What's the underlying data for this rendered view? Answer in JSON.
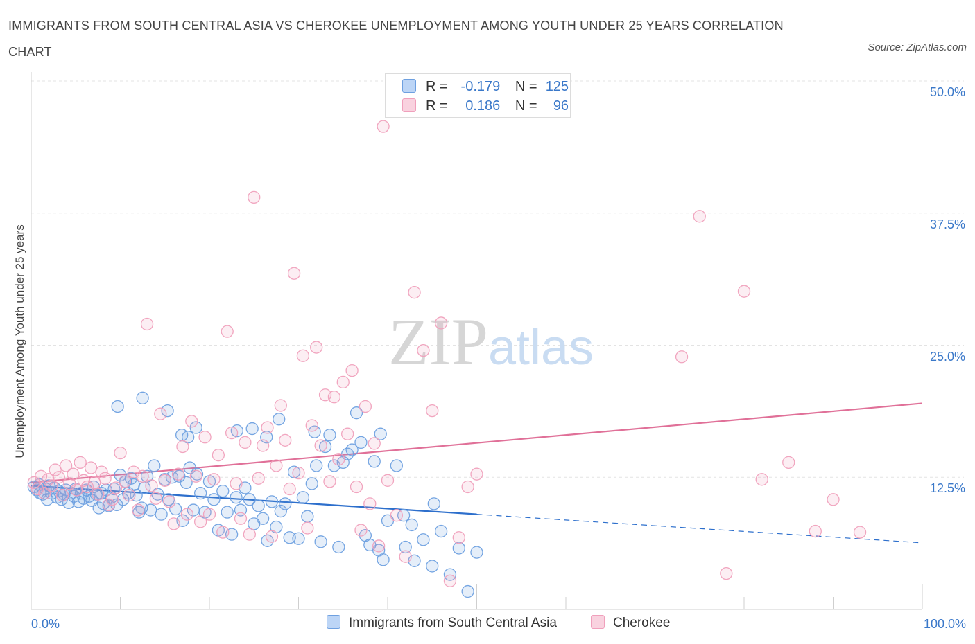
{
  "chart_data": {
    "type": "scatter",
    "title": "IMMIGRANTS FROM SOUTH CENTRAL ASIA VS CHEROKEE UNEMPLOYMENT AMONG YOUTH UNDER 25 YEARS CORRELATION CHART",
    "source": "Source: ZipAtlas.com",
    "xlabel": "",
    "ylabel": "Unemployment Among Youth under 25 years",
    "xlim": [
      0,
      100
    ],
    "ylim": [
      0,
      50
    ],
    "x_tick_labels": [
      "0.0%",
      "100.0%"
    ],
    "y_ticks": [
      {
        "value": 50,
        "label": "50.0%"
      },
      {
        "value": 37.5,
        "label": "37.5%"
      },
      {
        "value": 25,
        "label": "25.0%"
      },
      {
        "value": 12.5,
        "label": "12.5%"
      }
    ],
    "legend": {
      "rows": [
        {
          "r_label": "R =",
          "r_value": "-0.179",
          "n_label": "N =",
          "n_value": "125"
        },
        {
          "r_label": "R =",
          "r_value": "0.186",
          "n_label": "N =",
          "n_value": "96"
        }
      ]
    },
    "watermark": "ZIPatlas",
    "series": [
      {
        "name": "Immigrants from South Central Asia",
        "color": "#6ea0e0",
        "line_color": "#2d6fcc",
        "trend": {
          "x0": 0,
          "y0": 11.7,
          "x1": 50,
          "y1": 9.0,
          "dash_x1": 100,
          "dash_y1": 6.3
        },
        "points": [
          [
            0.3,
            11.6
          ],
          [
            0.6,
            11.3
          ],
          [
            0.9,
            11.8
          ],
          [
            1.0,
            11.0
          ],
          [
            1.3,
            10.9
          ],
          [
            1.6,
            11.4
          ],
          [
            1.8,
            10.4
          ],
          [
            2.0,
            11.7
          ],
          [
            2.3,
            11.0
          ],
          [
            2.6,
            11.5
          ],
          [
            2.9,
            10.6
          ],
          [
            3.1,
            11.2
          ],
          [
            3.4,
            10.4
          ],
          [
            3.7,
            10.9
          ],
          [
            3.9,
            11.3
          ],
          [
            4.2,
            10.1
          ],
          [
            4.5,
            11.0
          ],
          [
            4.8,
            10.7
          ],
          [
            5.0,
            11.4
          ],
          [
            5.3,
            10.2
          ],
          [
            5.6,
            11.0
          ],
          [
            5.9,
            10.5
          ],
          [
            6.2,
            11.3
          ],
          [
            6.5,
            10.7
          ],
          [
            6.8,
            10.3
          ],
          [
            7.0,
            11.6
          ],
          [
            7.3,
            10.9
          ],
          [
            7.6,
            9.6
          ],
          [
            7.9,
            11.0
          ],
          [
            8.1,
            10.0
          ],
          [
            8.4,
            11.3
          ],
          [
            8.7,
            9.8
          ],
          [
            9.0,
            10.6
          ],
          [
            9.3,
            11.4
          ],
          [
            9.6,
            9.9
          ],
          [
            10.0,
            12.7
          ],
          [
            10.3,
            10.4
          ],
          [
            10.6,
            12.1
          ],
          [
            10.9,
            11.0
          ],
          [
            11.2,
            12.4
          ],
          [
            11.5,
            11.8
          ],
          [
            11.8,
            10.8
          ],
          [
            12.1,
            9.2
          ],
          [
            12.4,
            9.6
          ],
          [
            12.7,
            11.5
          ],
          [
            13.0,
            12.6
          ],
          [
            13.4,
            9.4
          ],
          [
            13.8,
            13.6
          ],
          [
            14.2,
            10.9
          ],
          [
            14.6,
            9.0
          ],
          [
            15.0,
            12.3
          ],
          [
            15.4,
            10.4
          ],
          [
            15.8,
            12.5
          ],
          [
            16.2,
            9.5
          ],
          [
            16.6,
            12.6
          ],
          [
            17.0,
            8.4
          ],
          [
            17.4,
            12.0
          ],
          [
            17.8,
            13.4
          ],
          [
            18.2,
            9.4
          ],
          [
            18.6,
            12.8
          ],
          [
            19.0,
            11.0
          ],
          [
            19.5,
            9.2
          ],
          [
            20.0,
            12.1
          ],
          [
            20.5,
            10.4
          ],
          [
            21.0,
            7.5
          ],
          [
            21.5,
            11.2
          ],
          [
            22.0,
            9.2
          ],
          [
            22.5,
            7.1
          ],
          [
            23.0,
            10.6
          ],
          [
            23.5,
            9.4
          ],
          [
            24.0,
            11.5
          ],
          [
            24.5,
            10.4
          ],
          [
            25.0,
            8.1
          ],
          [
            25.5,
            9.8
          ],
          [
            26.0,
            8.6
          ],
          [
            26.5,
            6.5
          ],
          [
            27.0,
            10.2
          ],
          [
            27.5,
            7.8
          ],
          [
            28.0,
            9.3
          ],
          [
            28.5,
            10.0
          ],
          [
            29.0,
            6.8
          ],
          [
            29.5,
            13.0
          ],
          [
            30.0,
            6.7
          ],
          [
            30.5,
            10.6
          ],
          [
            31.0,
            8.8
          ],
          [
            31.5,
            11.9
          ],
          [
            32.0,
            13.6
          ],
          [
            32.5,
            6.4
          ],
          [
            33.0,
            15.4
          ],
          [
            33.5,
            16.5
          ],
          [
            34.0,
            13.6
          ],
          [
            34.5,
            5.9
          ],
          [
            35.0,
            13.9
          ],
          [
            35.5,
            14.7
          ],
          [
            36.0,
            15.1
          ],
          [
            36.5,
            18.6
          ],
          [
            37.0,
            15.8
          ],
          [
            37.5,
            7.0
          ],
          [
            38.0,
            6.1
          ],
          [
            38.5,
            14.0
          ],
          [
            39.0,
            5.6
          ],
          [
            39.5,
            4.7
          ],
          [
            40.0,
            8.4
          ],
          [
            41.0,
            13.6
          ],
          [
            42.0,
            5.9
          ],
          [
            43.0,
            4.6
          ],
          [
            44.0,
            6.6
          ],
          [
            45.0,
            4.1
          ],
          [
            46.0,
            7.4
          ],
          [
            47.0,
            3.3
          ],
          [
            48.0,
            5.8
          ],
          [
            49.0,
            1.7
          ],
          [
            50.0,
            5.4
          ],
          [
            9.7,
            19.2
          ],
          [
            12.5,
            20.0
          ],
          [
            15.3,
            18.8
          ],
          [
            16.9,
            16.5
          ],
          [
            17.6,
            16.3
          ],
          [
            18.5,
            17.2
          ],
          [
            23.1,
            16.9
          ],
          [
            24.8,
            17.1
          ],
          [
            26.4,
            16.3
          ],
          [
            27.8,
            18.0
          ],
          [
            31.8,
            16.8
          ],
          [
            39.2,
            16.6
          ],
          [
            45.2,
            10.0
          ],
          [
            42.7,
            8.0
          ],
          [
            41.8,
            8.9
          ]
        ]
      },
      {
        "name": "Cherokee",
        "color": "#f0a0bc",
        "line_color": "#e07098",
        "trend": {
          "x0": 0,
          "y0": 12.0,
          "x1": 100,
          "y1": 19.5
        },
        "points": [
          [
            0.3,
            12.0
          ],
          [
            0.7,
            11.4
          ],
          [
            1.1,
            12.6
          ],
          [
            1.5,
            11.0
          ],
          [
            1.9,
            12.3
          ],
          [
            2.3,
            11.7
          ],
          [
            2.7,
            13.2
          ],
          [
            3.1,
            12.5
          ],
          [
            3.5,
            10.8
          ],
          [
            3.9,
            13.6
          ],
          [
            4.3,
            11.9
          ],
          [
            4.7,
            12.8
          ],
          [
            5.1,
            11.3
          ],
          [
            5.5,
            13.9
          ],
          [
            5.9,
            12.2
          ],
          [
            6.3,
            11.6
          ],
          [
            6.7,
            13.4
          ],
          [
            7.1,
            12.0
          ],
          [
            7.5,
            10.9
          ],
          [
            7.9,
            13.0
          ],
          [
            8.3,
            12.4
          ],
          [
            8.7,
            9.9
          ],
          [
            9.1,
            10.4
          ],
          [
            9.5,
            11.5
          ],
          [
            10.0,
            14.8
          ],
          [
            10.5,
            12.1
          ],
          [
            11.0,
            10.8
          ],
          [
            11.5,
            13.0
          ],
          [
            12.0,
            9.4
          ],
          [
            12.5,
            12.6
          ],
          [
            13.0,
            27.0
          ],
          [
            13.5,
            11.7
          ],
          [
            14.0,
            10.5
          ],
          [
            14.5,
            18.5
          ],
          [
            15.0,
            12.2
          ],
          [
            15.5,
            10.2
          ],
          [
            16.0,
            8.1
          ],
          [
            16.5,
            12.8
          ],
          [
            17.0,
            15.4
          ],
          [
            17.5,
            9.0
          ],
          [
            18.0,
            17.8
          ],
          [
            18.5,
            12.6
          ],
          [
            19.0,
            8.3
          ],
          [
            19.5,
            16.3
          ],
          [
            20.0,
            9.0
          ],
          [
            20.5,
            12.3
          ],
          [
            21.0,
            14.6
          ],
          [
            21.5,
            7.3
          ],
          [
            22.0,
            26.3
          ],
          [
            22.5,
            16.7
          ],
          [
            23.0,
            11.9
          ],
          [
            23.5,
            8.6
          ],
          [
            24.0,
            15.8
          ],
          [
            24.5,
            7.1
          ],
          [
            25.0,
            39.0
          ],
          [
            25.5,
            12.4
          ],
          [
            26.0,
            15.5
          ],
          [
            26.5,
            17.2
          ],
          [
            27.0,
            6.9
          ],
          [
            27.5,
            13.6
          ],
          [
            28.0,
            19.3
          ],
          [
            28.5,
            16.0
          ],
          [
            29.0,
            11.4
          ],
          [
            29.5,
            31.8
          ],
          [
            30.0,
            12.9
          ],
          [
            30.5,
            24.0
          ],
          [
            31.0,
            7.7
          ],
          [
            31.5,
            17.4
          ],
          [
            32.0,
            24.8
          ],
          [
            32.5,
            15.5
          ],
          [
            33.0,
            20.3
          ],
          [
            33.5,
            12.1
          ],
          [
            34.0,
            20.1
          ],
          [
            34.5,
            14.2
          ],
          [
            35.0,
            21.5
          ],
          [
            35.5,
            16.6
          ],
          [
            36.0,
            22.6
          ],
          [
            36.5,
            11.6
          ],
          [
            37.0,
            7.5
          ],
          [
            37.5,
            19.2
          ],
          [
            38.0,
            10.0
          ],
          [
            38.5,
            15.7
          ],
          [
            39.0,
            6.0
          ],
          [
            39.5,
            45.7
          ],
          [
            40.0,
            12.2
          ],
          [
            41.0,
            8.9
          ],
          [
            42.0,
            5.0
          ],
          [
            43.0,
            30.0
          ],
          [
            44.0,
            24.5
          ],
          [
            45.0,
            18.8
          ],
          [
            46.0,
            27.1
          ],
          [
            47.0,
            2.7
          ],
          [
            48.0,
            6.8
          ],
          [
            49.0,
            11.6
          ],
          [
            50.0,
            12.8
          ],
          [
            73.0,
            23.9
          ],
          [
            75.0,
            37.2
          ],
          [
            78.0,
            3.4
          ],
          [
            80.0,
            30.1
          ],
          [
            82.0,
            12.3
          ],
          [
            85.0,
            13.9
          ],
          [
            88.0,
            7.4
          ],
          [
            90.0,
            10.4
          ],
          [
            93.0,
            7.3
          ]
        ]
      }
    ]
  }
}
